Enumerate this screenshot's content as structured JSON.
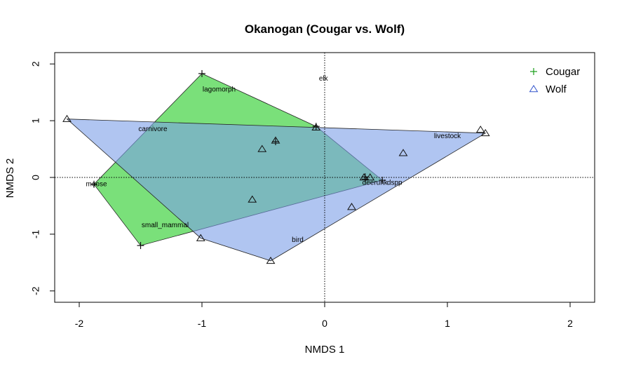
{
  "chart_data": {
    "type": "scatter",
    "title": "Okanogan (Cougar vs. Wolf)",
    "xlabel": "NMDS 1",
    "ylabel": "NMDS 2",
    "xlim": [
      -2.2,
      2.2
    ],
    "ylim": [
      -2.2,
      2.2
    ],
    "xticks": [
      -2,
      -1,
      0,
      1,
      2
    ],
    "yticks": [
      -2,
      -1,
      0,
      1,
      2
    ],
    "reference_lines": {
      "x": 0,
      "y": 0,
      "style": "dotted"
    },
    "legend": {
      "position": "top-right"
    },
    "series": [
      {
        "name": "Cougar",
        "marker": "plus",
        "color": "#1a9e1a",
        "hull_fill": "#22cc22",
        "hull_opacity": 0.6,
        "points": [
          {
            "x": -1.0,
            "y": 1.83
          },
          {
            "x": -0.07,
            "y": 0.9
          },
          {
            "x": 0.33,
            "y": 0.01
          },
          {
            "x": 0.47,
            "y": -0.05
          },
          {
            "x": -1.88,
            "y": -0.12
          },
          {
            "x": -1.5,
            "y": -1.2
          },
          {
            "x": -0.4,
            "y": 0.63
          },
          {
            "x": 0.33,
            "y": -0.03
          }
        ],
        "hull": [
          {
            "x": -1.0,
            "y": 1.83
          },
          {
            "x": -0.07,
            "y": 0.9
          },
          {
            "x": 0.47,
            "y": -0.05
          },
          {
            "x": -1.5,
            "y": -1.2
          },
          {
            "x": -1.88,
            "y": -0.12
          }
        ]
      },
      {
        "name": "Wolf",
        "marker": "triangle",
        "color": "#3355cc",
        "hull_fill": "#7c9ee8",
        "hull_opacity": 0.6,
        "points": [
          {
            "x": -2.1,
            "y": 1.03
          },
          {
            "x": -0.07,
            "y": 0.88
          },
          {
            "x": -0.4,
            "y": 0.65
          },
          {
            "x": -0.51,
            "y": 0.5
          },
          {
            "x": 1.27,
            "y": 0.84
          },
          {
            "x": 1.31,
            "y": 0.78
          },
          {
            "x": 0.64,
            "y": 0.43
          },
          {
            "x": 0.37,
            "y": 0.0
          },
          {
            "x": 0.32,
            "y": 0.0
          },
          {
            "x": -0.59,
            "y": -0.39
          },
          {
            "x": 0.22,
            "y": -0.52
          },
          {
            "x": -1.01,
            "y": -1.07
          },
          {
            "x": -0.44,
            "y": -1.47
          }
        ],
        "hull": [
          {
            "x": -2.1,
            "y": 1.03
          },
          {
            "x": 1.31,
            "y": 0.78
          },
          {
            "x": -0.44,
            "y": -1.47
          },
          {
            "x": -1.01,
            "y": -1.07
          }
        ]
      }
    ],
    "species_labels": [
      {
        "text": "elk",
        "x": -0.01,
        "y": 1.74
      },
      {
        "text": "lagomorph",
        "x": -0.86,
        "y": 1.55
      },
      {
        "text": "carnivore",
        "x": -1.4,
        "y": 0.85
      },
      {
        "text": "livestock",
        "x": 1.0,
        "y": 0.73
      },
      {
        "text": "moose",
        "x": -1.86,
        "y": -0.12
      },
      {
        "text": "deerunk",
        "x": 0.41,
        "y": -0.09
      },
      {
        "text": "dspp",
        "x": 0.57,
        "y": -0.09
      },
      {
        "text": "small_mammal",
        "x": -1.3,
        "y": -0.84
      },
      {
        "text": "bird",
        "x": -0.22,
        "y": -1.1
      }
    ]
  }
}
